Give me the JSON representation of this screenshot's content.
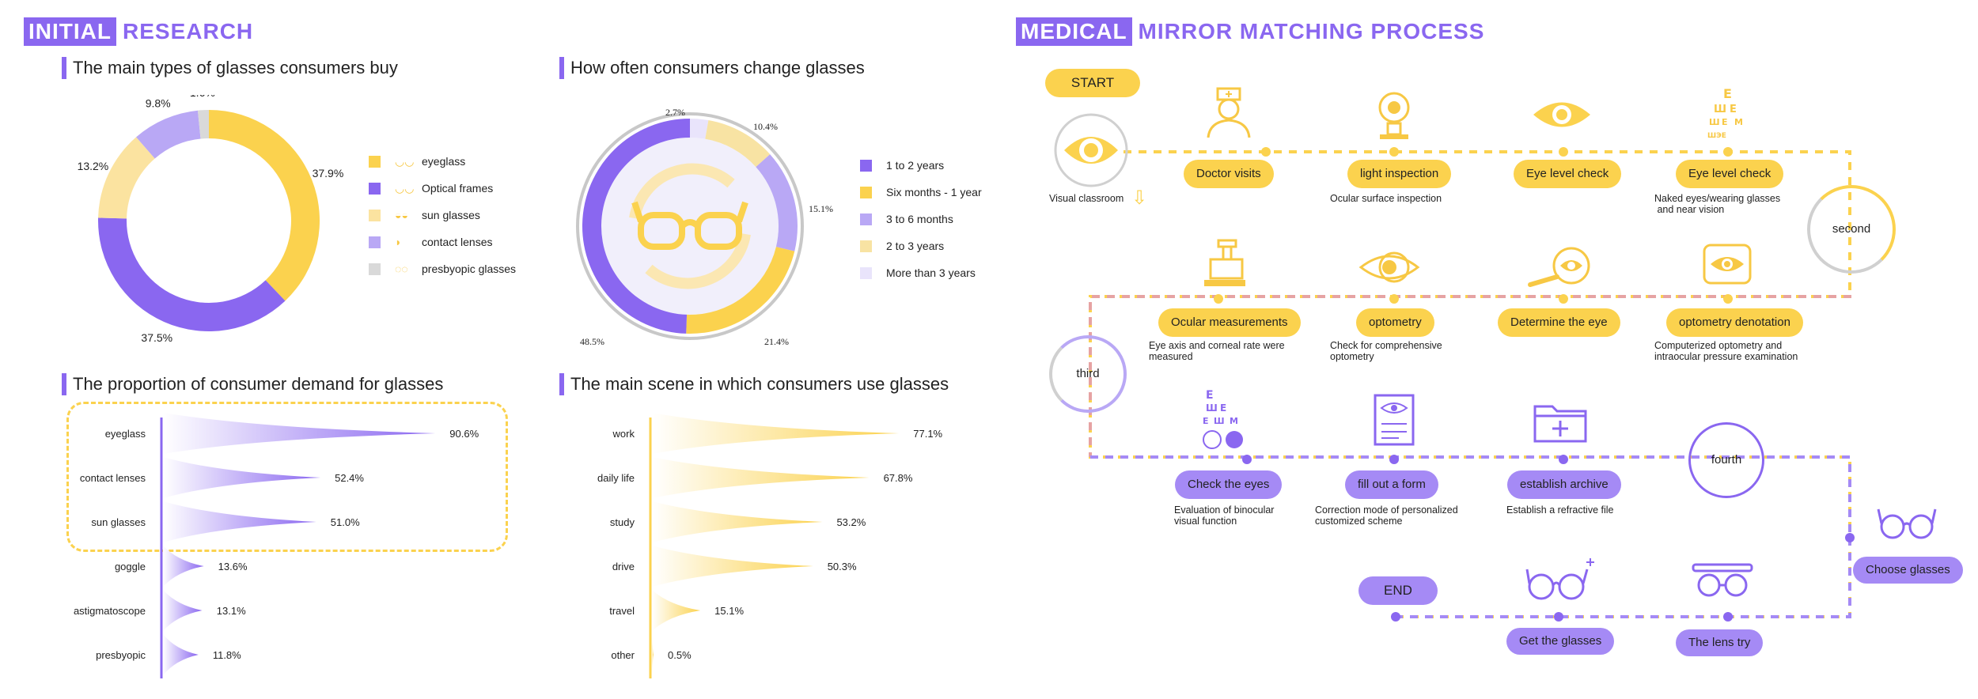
{
  "left_header": {
    "box": "INITIAL",
    "rest": "RESEARCH"
  },
  "right_header": {
    "box": "MEDICAL",
    "rest": "MIRROR  MATCHING  PROCESS"
  },
  "colors": {
    "purple": "#8a67f0",
    "yellow": "#fbd24e",
    "light_purple": "#b9a8f5",
    "light_yellow": "#fbe3a0",
    "gray": "#d9d9d9"
  },
  "chart_data": [
    {
      "type": "pie",
      "title": "The main types of glasses consumers buy",
      "slices": [
        {
          "label": "eyeglass",
          "value": 37.9,
          "text": "37.9%",
          "color": "#fbd24e",
          "icon": "glasses-icon"
        },
        {
          "label": "Optical frames",
          "value": 37.5,
          "text": "37.5%",
          "color": "#8a67f0",
          "icon": "glasses-icon"
        },
        {
          "label": "sun glasses",
          "value": 13.2,
          "text": "13.2%",
          "color": "#fbe3a0",
          "icon": "sunglasses-icon"
        },
        {
          "label": "contact lenses",
          "value": 9.8,
          "text": "9.8%",
          "color": "#b9a8f5",
          "icon": "contact-lens-icon"
        },
        {
          "label": "presbyopic glasses",
          "value": 1.6,
          "text": "1.6%",
          "color": "#d9d9d9",
          "icon": "reading-glasses-icon"
        }
      ]
    },
    {
      "type": "pie",
      "title": "How often consumers change glasses",
      "slices": [
        {
          "label": "1 to 2 years",
          "value": 48.5,
          "text": "48.5%",
          "color": "#8a67f0"
        },
        {
          "label": "Six months - 1 year",
          "value": 21.4,
          "text": "21.4%",
          "color": "#fbd24e"
        },
        {
          "label": "3 to 6 months",
          "value": 15.1,
          "text": "15.1%",
          "color": "#b9a8f5"
        },
        {
          "label": "2 to 3 years",
          "value": 10.4,
          "text": "10.4%",
          "color": "#f8e3a3"
        },
        {
          "label": "More than 3 years",
          "value": 2.7,
          "text": "2.7%",
          "color": "#e9e4fb"
        }
      ]
    },
    {
      "type": "bar",
      "title": "The proportion of consumer demand for glasses",
      "categories": [
        "eyeglass",
        "contact lenses",
        "sun glasses",
        "goggle",
        "astigmatoscope",
        "presbyopic"
      ],
      "values": [
        90.6,
        52.4,
        51.0,
        13.6,
        13.1,
        11.8
      ],
      "labels": [
        "90.6%",
        "52.4%",
        "51.0%",
        "13.6%",
        "13.1%",
        "11.8%"
      ]
    },
    {
      "type": "bar",
      "title": "The main scene in which consumers use glasses",
      "categories": [
        "work",
        "daily life",
        "study",
        "drive",
        "travel",
        "other"
      ],
      "values": [
        77.1,
        67.8,
        53.2,
        50.3,
        15.1,
        0.5
      ],
      "labels": [
        "77.1%",
        "67.8%",
        "53.2%",
        "50.3%",
        "15.1%",
        "0.5%"
      ]
    }
  ],
  "flow": {
    "start": "START",
    "end": "END",
    "visual_classroom": "Visual classroom",
    "second": "second",
    "third": "third",
    "fourth": "fourth",
    "steps": [
      {
        "label": "Doctor visits",
        "caption": "",
        "icon": "doctor-icon"
      },
      {
        "label": "light inspection",
        "caption": "Ocular surface inspection",
        "icon": "slit-lamp-icon"
      },
      {
        "label": "Eye level check",
        "caption": "",
        "icon": "eye-icon"
      },
      {
        "label": "Eye level check",
        "caption": "Naked eyes/wearing glasses\n and near vision",
        "icon": "eye-chart-icon"
      },
      {
        "label": "Ocular measurements",
        "caption": "Eye axis and corneal rate were\nmeasured",
        "icon": "measurement-device-icon"
      },
      {
        "label": "optometry",
        "caption": "Check for comprehensive\noptometry",
        "icon": "optometry-eye-icon"
      },
      {
        "label": "Determine the eye",
        "caption": "",
        "icon": "magnifier-eye-icon"
      },
      {
        "label": "optometry denotation",
        "caption": "Computerized optometry and\nintraocular pressure examination",
        "icon": "monitor-eye-icon"
      },
      {
        "label": "Check the eyes",
        "caption": "Evaluation of binocular\nvisual function",
        "icon": "eye-test-icon"
      },
      {
        "label": "fill out a form",
        "caption": "Correction mode of personalized\ncustomized scheme",
        "icon": "form-icon"
      },
      {
        "label": "establish archive",
        "caption": "Establish a refractive file",
        "icon": "folder-plus-icon"
      },
      {
        "label": "Choose glasses",
        "caption": "",
        "icon": "glasses-icon"
      },
      {
        "label": "The lens try",
        "caption": "",
        "icon": "trial-frame-icon"
      },
      {
        "label": "Get the glasses",
        "caption": "",
        "icon": "glasses-sparkle-icon"
      }
    ]
  }
}
